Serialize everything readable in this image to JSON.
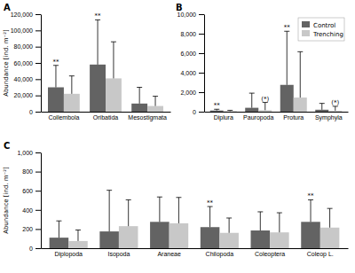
{
  "chart_data": [
    {
      "type": "bar",
      "title": "A",
      "categories": [
        "Collembola",
        "Oribatida",
        "Mesostigmata"
      ],
      "series": [
        {
          "color": "#636363",
          "values": [
            30000,
            58000,
            10000
          ],
          "errors": [
            27000,
            55000,
            20000
          ],
          "annotations": [
            {
              "category": "Collembola",
              "text": "**"
            },
            {
              "category": "Oribatida",
              "text": "**"
            }
          ]
        },
        {
          "color": "#c8c8c8",
          "values": [
            22000,
            41000,
            7000
          ],
          "errors": [
            22000,
            45000,
            12000
          ]
        }
      ],
      "ylabel": "Abundance [ind. m⁻²]",
      "ylim": [
        0,
        120000
      ],
      "yticks": [
        0,
        {
          "value": 20000,
          "label": "20,000"
        },
        {
          "value": 40000,
          "label": "40,000"
        },
        {
          "value": 60000,
          "label": "60,000"
        },
        {
          "value": 80000,
          "label": "80,000"
        },
        {
          "value": 100000,
          "label": "100,000"
        },
        {
          "value": 120000,
          "label": "120,000"
        }
      ],
      "grid": false
    },
    {
      "type": "bar",
      "title": "B",
      "categories": [
        "Diplura",
        "Pauropoda",
        "Protura",
        "Symphyla"
      ],
      "series": [
        {
          "name": "Control",
          "color": "#636363",
          "values": [
            120,
            400,
            2750,
            200
          ],
          "errors": [
            130,
            1500,
            5500,
            650
          ],
          "annotations": [
            {
              "category": "Diplura",
              "text": "**"
            },
            {
              "category": "Protura",
              "text": "**"
            }
          ]
        },
        {
          "name": "Trenching",
          "color": "#c8c8c8",
          "values": [
            60,
            150,
            1450,
            100
          ],
          "errors": [
            80,
            800,
            4700,
            450
          ],
          "annotations": [
            {
              "category": "Pauropoda",
              "text": "(*)"
            },
            {
              "category": "Symphyla",
              "text": "(*)"
            }
          ]
        }
      ],
      "ylim": [
        0,
        10000
      ],
      "yticks": [
        0,
        {
          "value": 2000,
          "label": "2,000"
        },
        {
          "value": 4000,
          "label": "4,000"
        },
        {
          "value": 6000,
          "label": "6,000"
        },
        {
          "value": 8000,
          "label": "8,000"
        },
        {
          "value": 10000,
          "label": "10,000"
        }
      ],
      "legend": "upper right",
      "grid": false
    },
    {
      "type": "bar",
      "title": "C",
      "categories": [
        "Diplopoda",
        "Isopoda",
        "Araneae",
        "Chilopoda",
        "Coleoptera",
        "Coleop L."
      ],
      "series": [
        {
          "color": "#636363",
          "values": [
            110,
            175,
            275,
            220,
            185,
            275
          ],
          "errors": [
            175,
            430,
            260,
            215,
            195,
            230
          ],
          "annotations": [
            {
              "category": "Chilopoda",
              "text": "**"
            },
            {
              "category": "Coleop L.",
              "text": "**"
            }
          ]
        },
        {
          "color": "#c8c8c8",
          "values": [
            75,
            230,
            260,
            160,
            165,
            215
          ],
          "errors": [
            115,
            275,
            270,
            155,
            205,
            200
          ]
        }
      ],
      "ylabel": "Abundance [ind. m⁻²]",
      "ylim": [
        0,
        1000
      ],
      "yticks": [
        0,
        200,
        400,
        600,
        800,
        {
          "value": 1000,
          "label": "1,000"
        }
      ],
      "grid": false
    }
  ]
}
